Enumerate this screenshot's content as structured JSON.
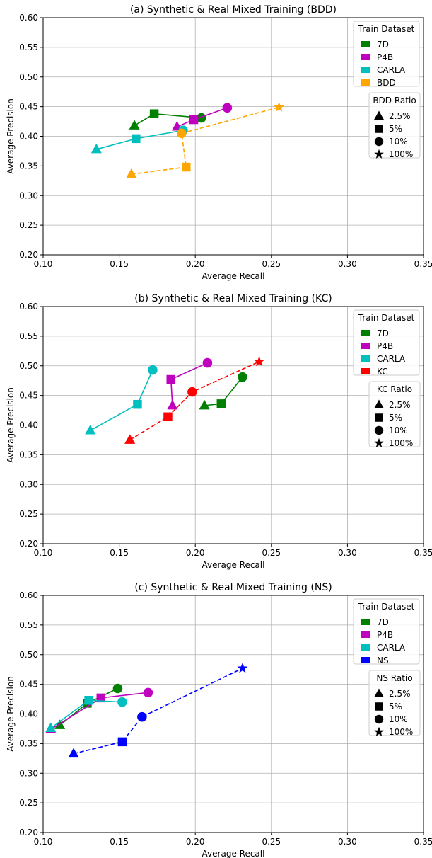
{
  "colors": {
    "7D": "#008000",
    "P4B": "#bf00bf",
    "CARLA": "#00bfbf",
    "BDD": "#ffa500",
    "KC": "#ff0000",
    "NS": "#0000ff"
  },
  "chart_data": [
    {
      "type": "line",
      "title": "(a) Synthetic & Real Mixed Training (BDD)",
      "xlabel": "Average Recall",
      "ylabel": "Average Precision",
      "xlim": [
        0.1,
        0.35
      ],
      "ylim": [
        0.2,
        0.6
      ],
      "xticks": [
        "0.10",
        "0.15",
        "0.20",
        "0.25",
        "0.30",
        "0.35"
      ],
      "yticks": [
        "0.20",
        "0.25",
        "0.30",
        "0.35",
        "0.40",
        "0.45",
        "0.50",
        "0.55",
        "0.60"
      ],
      "grid": true,
      "legend_title": "Train Dataset",
      "ratio_title": "BDD Ratio",
      "ratio_labels": [
        "2.5%",
        "5%",
        "10%",
        "100%"
      ],
      "series": [
        {
          "name": "7D",
          "color_key": "7D",
          "dashed": false,
          "x": [
            0.16,
            0.173,
            0.204
          ],
          "y": [
            0.418,
            0.438,
            0.431
          ],
          "markers": [
            "triangle",
            "square",
            "circle"
          ]
        },
        {
          "name": "P4B",
          "color_key": "P4B",
          "dashed": false,
          "x": [
            0.188,
            0.199,
            0.221
          ],
          "y": [
            0.416,
            0.428,
            0.448
          ],
          "markers": [
            "triangle",
            "square",
            "circle"
          ]
        },
        {
          "name": "CARLA",
          "color_key": "CARLA",
          "dashed": false,
          "x": [
            0.135,
            0.161,
            0.192
          ],
          "y": [
            0.378,
            0.396,
            0.41
          ],
          "markers": [
            "triangle",
            "square",
            "circle"
          ]
        },
        {
          "name": "BDD",
          "color_key": "BDD",
          "dashed": true,
          "x": [
            0.158,
            0.194,
            0.191,
            0.255
          ],
          "y": [
            0.336,
            0.348,
            0.405,
            0.449
          ],
          "markers": [
            "triangle",
            "square",
            "circle",
            "star"
          ]
        }
      ]
    },
    {
      "type": "line",
      "title": "(b) Synthetic & Real Mixed Training (KC)",
      "xlabel": "Average Recall",
      "ylabel": "Average Precision",
      "xlim": [
        0.1,
        0.35
      ],
      "ylim": [
        0.2,
        0.6
      ],
      "xticks": [
        "0.10",
        "0.15",
        "0.20",
        "0.25",
        "0.30",
        "0.35"
      ],
      "yticks": [
        "0.20",
        "0.25",
        "0.30",
        "0.35",
        "0.40",
        "0.45",
        "0.50",
        "0.55",
        "0.60"
      ],
      "grid": true,
      "legend_title": "Train Dataset",
      "ratio_title": "KC Ratio",
      "ratio_labels": [
        "2.5%",
        "5%",
        "10%",
        "100%"
      ],
      "series": [
        {
          "name": "7D",
          "color_key": "7D",
          "dashed": false,
          "x": [
            0.206,
            0.217,
            0.231
          ],
          "y": [
            0.433,
            0.436,
            0.481
          ],
          "markers": [
            "triangle",
            "square",
            "circle"
          ]
        },
        {
          "name": "P4B",
          "color_key": "P4B",
          "dashed": false,
          "x": [
            0.185,
            0.184,
            0.208
          ],
          "y": [
            0.433,
            0.477,
            0.505
          ],
          "markers": [
            "triangle",
            "square",
            "circle"
          ]
        },
        {
          "name": "CARLA",
          "color_key": "CARLA",
          "dashed": false,
          "x": [
            0.131,
            0.162,
            0.172
          ],
          "y": [
            0.391,
            0.435,
            0.493
          ],
          "markers": [
            "triangle",
            "square",
            "circle"
          ]
        },
        {
          "name": "KC",
          "color_key": "KC",
          "dashed": true,
          "x": [
            0.157,
            0.182,
            0.198,
            0.242
          ],
          "y": [
            0.375,
            0.414,
            0.456,
            0.507
          ],
          "markers": [
            "triangle",
            "square",
            "circle",
            "star"
          ]
        }
      ]
    },
    {
      "type": "line",
      "title": "(c) Synthetic & Real Mixed Training (NS)",
      "xlabel": "Average Recall",
      "ylabel": "Average Precision",
      "xlim": [
        0.1,
        0.35
      ],
      "ylim": [
        0.2,
        0.6
      ],
      "xticks": [
        "0.10",
        "0.15",
        "0.20",
        "0.25",
        "0.30",
        "0.35"
      ],
      "yticks": [
        "0.20",
        "0.25",
        "0.30",
        "0.35",
        "0.40",
        "0.45",
        "0.50",
        "0.55",
        "0.60"
      ],
      "grid": true,
      "legend_title": "Train Dataset",
      "ratio_title": "NS Ratio",
      "ratio_labels": [
        "2.5%",
        "5%",
        "10%",
        "100%"
      ],
      "series": [
        {
          "name": "7D",
          "color_key": "7D",
          "dashed": false,
          "x": [
            0.111,
            0.129,
            0.149
          ],
          "y": [
            0.381,
            0.418,
            0.443
          ],
          "markers": [
            "triangle",
            "square",
            "circle"
          ]
        },
        {
          "name": "P4B",
          "color_key": "P4B",
          "dashed": false,
          "x": [
            0.105,
            0.138,
            0.169
          ],
          "y": [
            0.374,
            0.427,
            0.436
          ],
          "markers": [
            "triangle",
            "square",
            "circle"
          ]
        },
        {
          "name": "CARLA",
          "color_key": "CARLA",
          "dashed": false,
          "x": [
            0.105,
            0.13,
            0.152
          ],
          "y": [
            0.376,
            0.423,
            0.42
          ],
          "markers": [
            "triangle",
            "square",
            "circle"
          ]
        },
        {
          "name": "NS",
          "color_key": "NS",
          "dashed": true,
          "x": [
            0.12,
            0.152,
            0.165,
            0.231
          ],
          "y": [
            0.333,
            0.353,
            0.395,
            0.477
          ],
          "markers": [
            "triangle",
            "square",
            "circle",
            "star"
          ]
        }
      ]
    }
  ]
}
